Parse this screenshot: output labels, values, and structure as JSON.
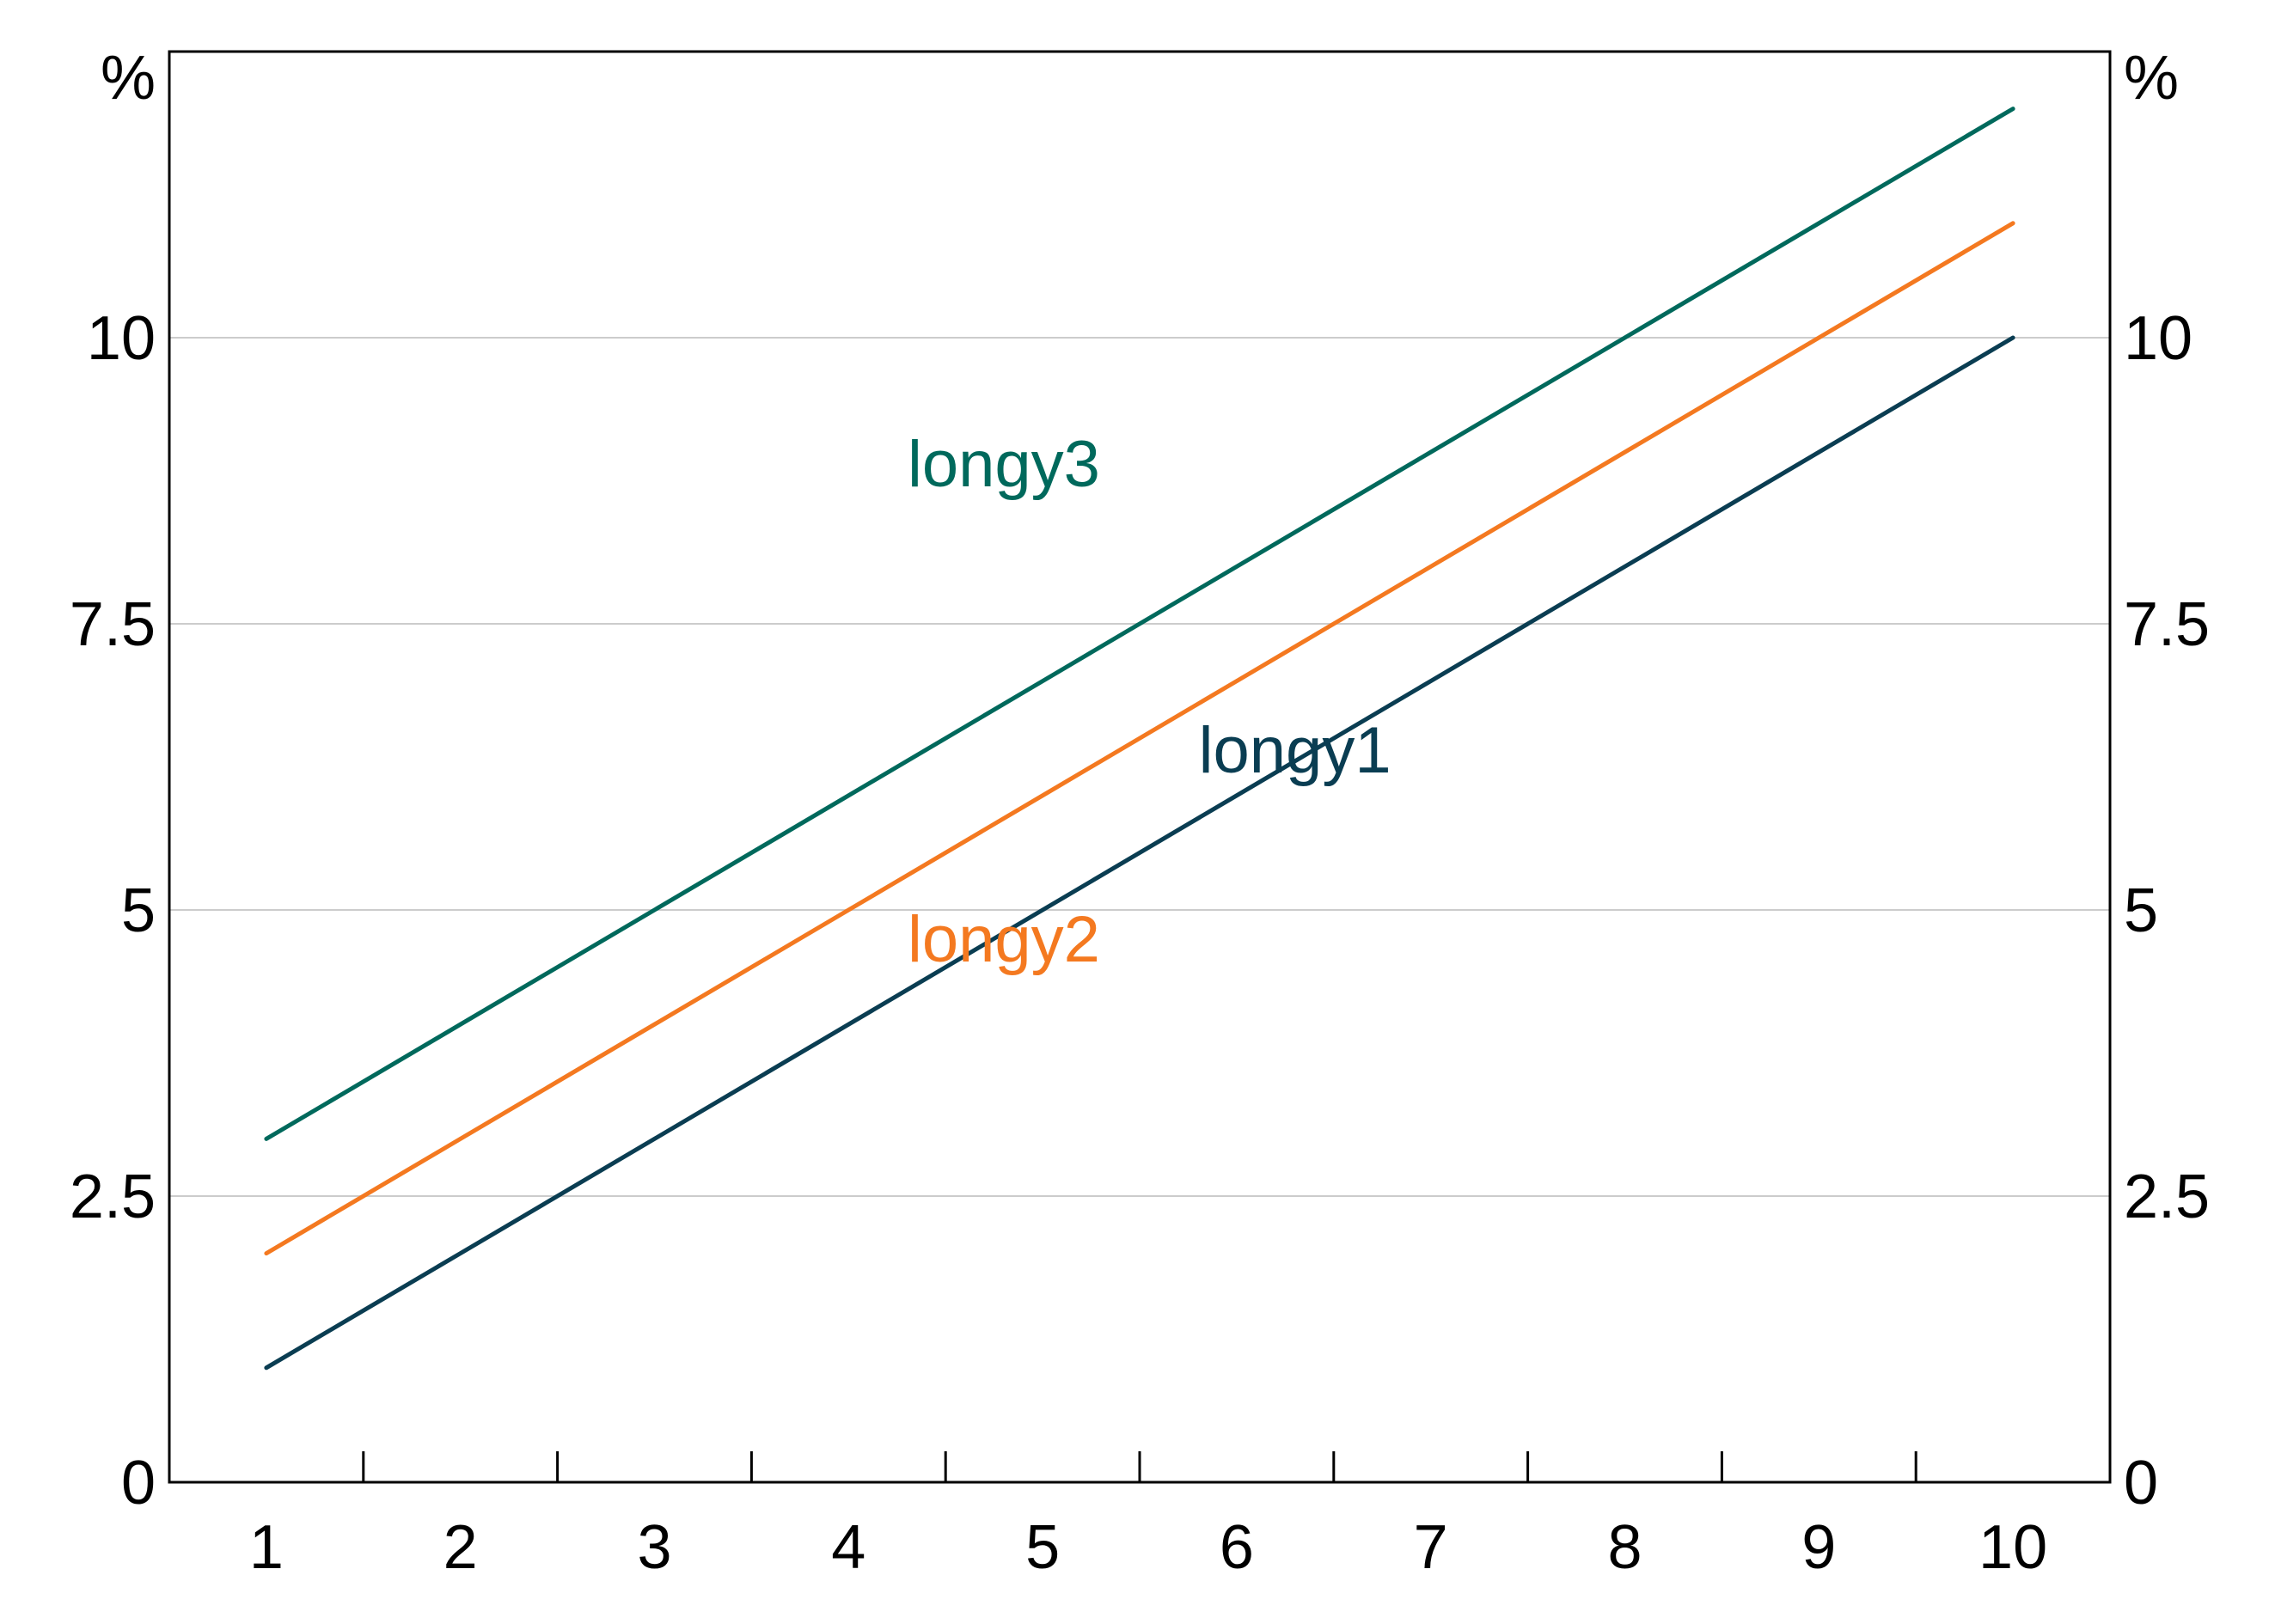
{
  "chart_data": {
    "type": "line",
    "title": "",
    "xlabel": "",
    "ylabel": "",
    "x": [
      1,
      2,
      3,
      4,
      5,
      6,
      7,
      8,
      9,
      10
    ],
    "xlim": [
      0.5,
      10.5
    ],
    "ylim": [
      0,
      12.5
    ],
    "yticks": [
      0,
      2.5,
      5,
      7.5,
      10
    ],
    "ytick_labels": [
      "0",
      "2.5",
      "5",
      "7.5",
      "10"
    ],
    "xtick_labels": [
      "1",
      "2",
      "3",
      "4",
      "5",
      "6",
      "7",
      "8",
      "9",
      "10"
    ],
    "y_unit_left": "%",
    "y_unit_right": "%",
    "grid": true,
    "legend": "inline labels",
    "series": [
      {
        "name": "longy1",
        "color": "#0a3d52",
        "values": [
          1,
          2,
          3,
          4,
          5,
          6,
          7,
          8,
          9,
          10
        ],
        "label_at": [
          6.3,
          6.2
        ]
      },
      {
        "name": "longy2",
        "color": "#f47920",
        "values": [
          2,
          3,
          4,
          5,
          6,
          7,
          8,
          9,
          10,
          11
        ],
        "label_at": [
          4.8,
          4.55
        ]
      },
      {
        "name": "longy3",
        "color": "#00695c",
        "values": [
          3,
          4,
          5,
          6,
          7,
          8,
          9,
          10,
          11,
          12
        ],
        "label_at": [
          4.8,
          8.7
        ]
      }
    ]
  }
}
